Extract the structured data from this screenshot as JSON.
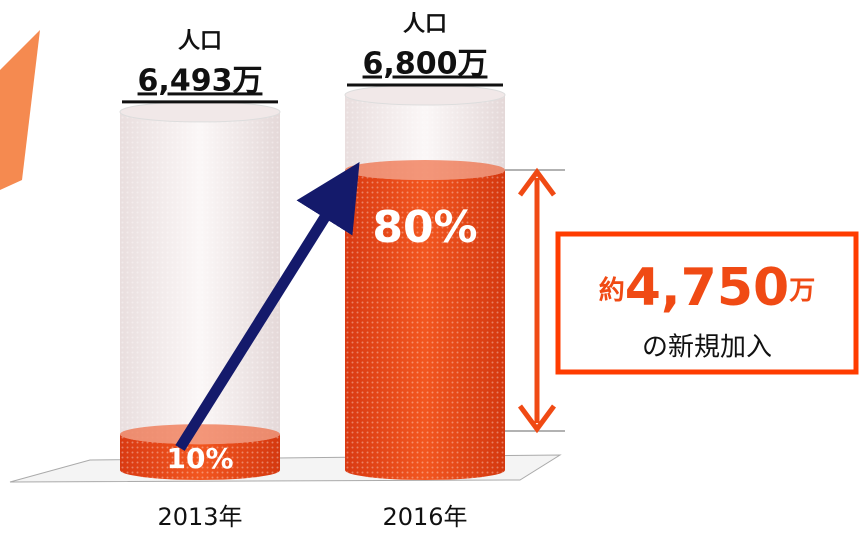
{
  "chart_data": {
    "type": "bar",
    "categories": [
      "2013年",
      "2016年"
    ],
    "population_title": "人口",
    "populations": [
      6493,
      6800
    ],
    "population_labels": [
      "6,493万",
      "6,800万"
    ],
    "values": [
      10,
      80
    ],
    "value_labels": [
      "10%",
      "80%"
    ],
    "color": "#e8441a",
    "annotation": {
      "prefix": "約",
      "number": "4,750",
      "unit": "万",
      "text": "の新規加入"
    }
  }
}
